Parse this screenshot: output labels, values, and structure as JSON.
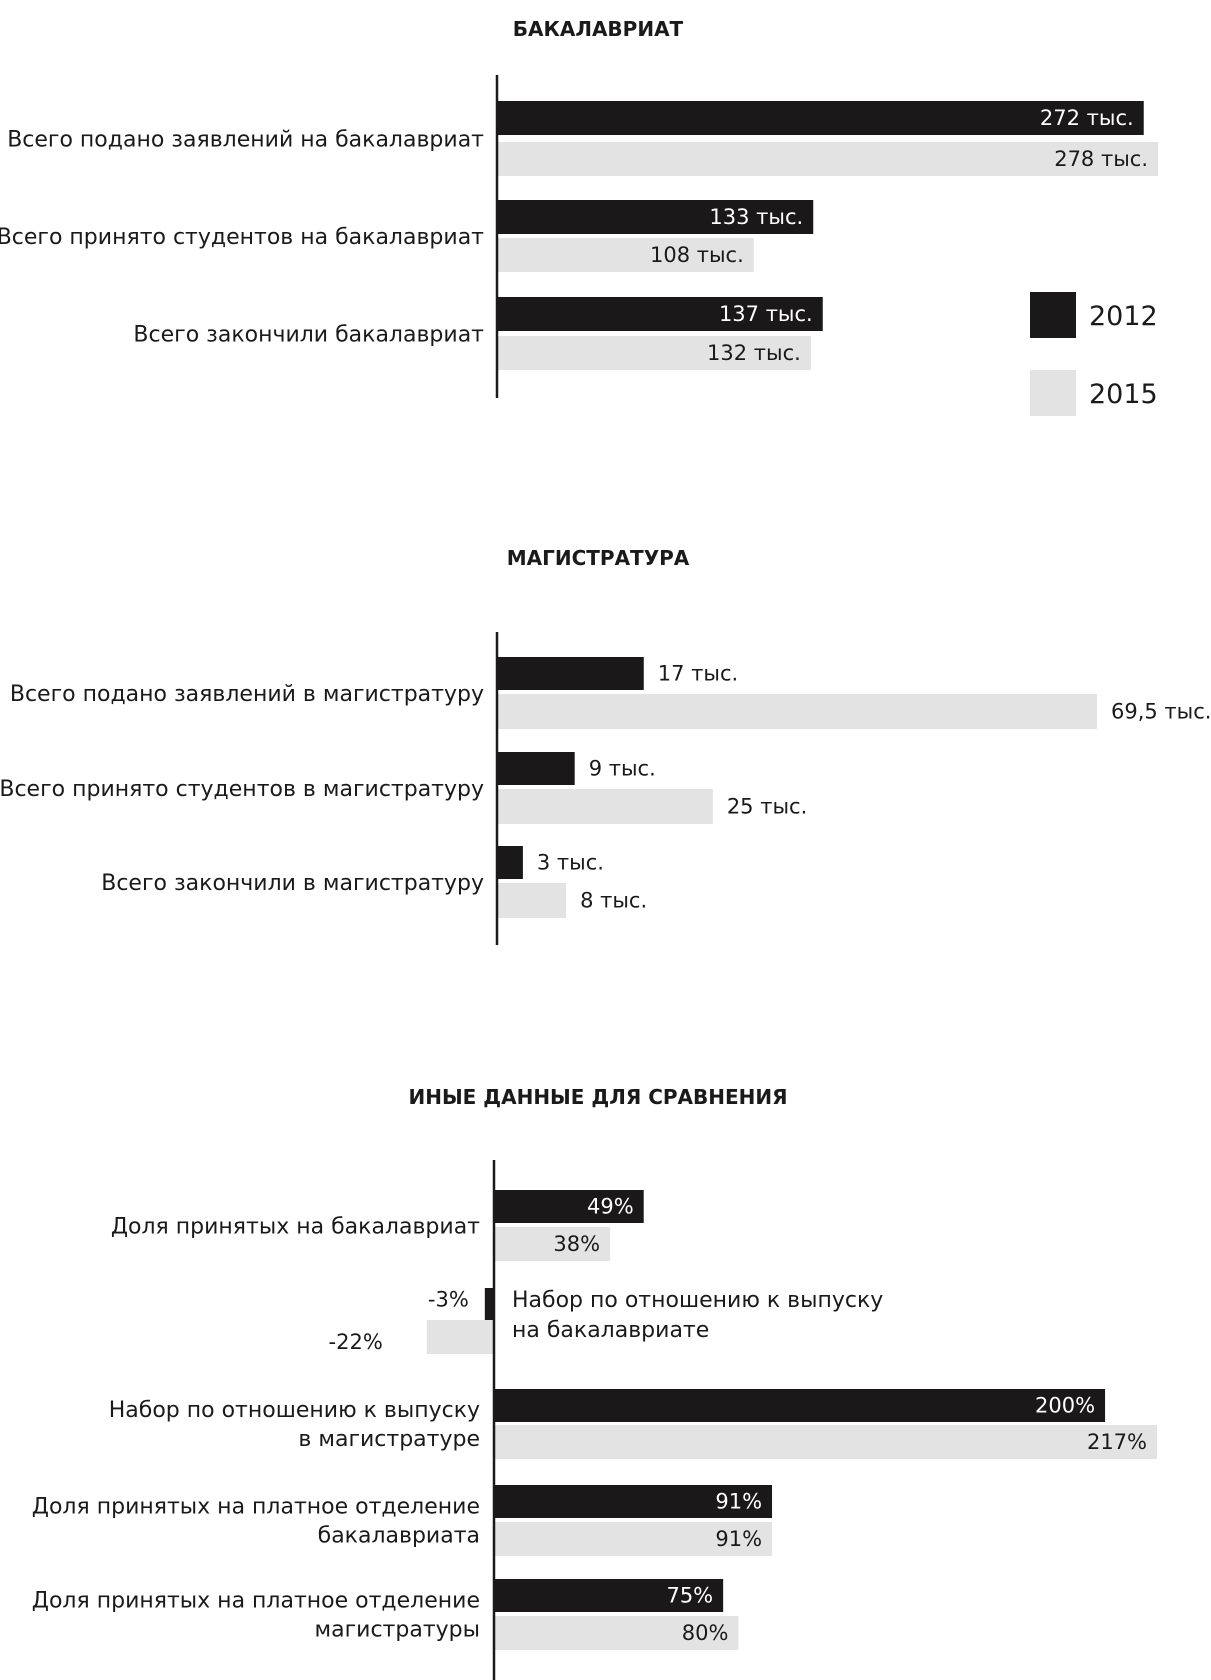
{
  "colors": {
    "y2012": "#1a1818",
    "y2015": "#e3e3e3",
    "axis": "#1a1a1a",
    "text": "#1a1a1a"
  },
  "legend": [
    {
      "label": "2012",
      "color": "#1a1818"
    },
    {
      "label": "2015",
      "color": "#e3e3e3"
    }
  ],
  "chart_data": [
    {
      "type": "bar",
      "orientation": "horizontal",
      "title": "БАКАЛАВРИАТ",
      "unit": "тыс.",
      "categories": [
        "Всего подано заявлений на бакалавриат",
        "Всего принято студентов на бакалавриат",
        "Всего закончили бакалавриат"
      ],
      "series": [
        {
          "name": "2012",
          "values": [
            272,
            133,
            137
          ],
          "labels": [
            "272 тыс.",
            "133 тыс.",
            "137 тыс."
          ]
        },
        {
          "name": "2015",
          "values": [
            278,
            108,
            132
          ],
          "labels": [
            "278 тыс.",
            "108 тыс.",
            "132 тыс."
          ]
        }
      ],
      "xlim": [
        0,
        278
      ],
      "label_position": "inside-end",
      "legend_position": "right"
    },
    {
      "type": "bar",
      "orientation": "horizontal",
      "title": "МАГИСТРАТУРА",
      "unit": "тыс.",
      "categories": [
        "Всего подано заявлений в магистратуру",
        "Всего принято студентов в магистратуру",
        "Всего закончили в магистратуру"
      ],
      "series": [
        {
          "name": "2012",
          "values": [
            17,
            9,
            3
          ],
          "labels": [
            "17 тыс.",
            "9 тыс.",
            "3 тыс."
          ]
        },
        {
          "name": "2015",
          "values": [
            69.5,
            25,
            8
          ],
          "labels": [
            "69,5 тыс.",
            "25 тыс.",
            "8 тыс."
          ]
        }
      ],
      "xlim": [
        0,
        69.5
      ],
      "label_position": "outside-end"
    },
    {
      "type": "bar",
      "orientation": "horizontal",
      "title": "ИНЫЕ ДАННЫЕ ДЛЯ СРАВНЕНИЯ",
      "unit": "%",
      "categories": [
        "Доля принятых на бакалавриат",
        "Набор по отношению к выпуску\nна бакалавриате",
        "Набор по отношению к выпуску\nв магистратуре",
        "Доля принятых на платное отделение\nбакалавриата",
        "Доля принятых на платное отделение\nмагистратуры"
      ],
      "series": [
        {
          "name": "2012",
          "values": [
            49,
            -3,
            200,
            91,
            75
          ],
          "labels": [
            "49%",
            "-3%",
            "200%",
            "91%",
            "75%"
          ]
        },
        {
          "name": "2015",
          "values": [
            38,
            -22,
            217,
            91,
            80
          ],
          "labels": [
            "38%",
            "-22%",
            "217%",
            "91%",
            "80%"
          ]
        }
      ],
      "xlim": [
        -22,
        217
      ],
      "label_position": "inside-end"
    }
  ]
}
